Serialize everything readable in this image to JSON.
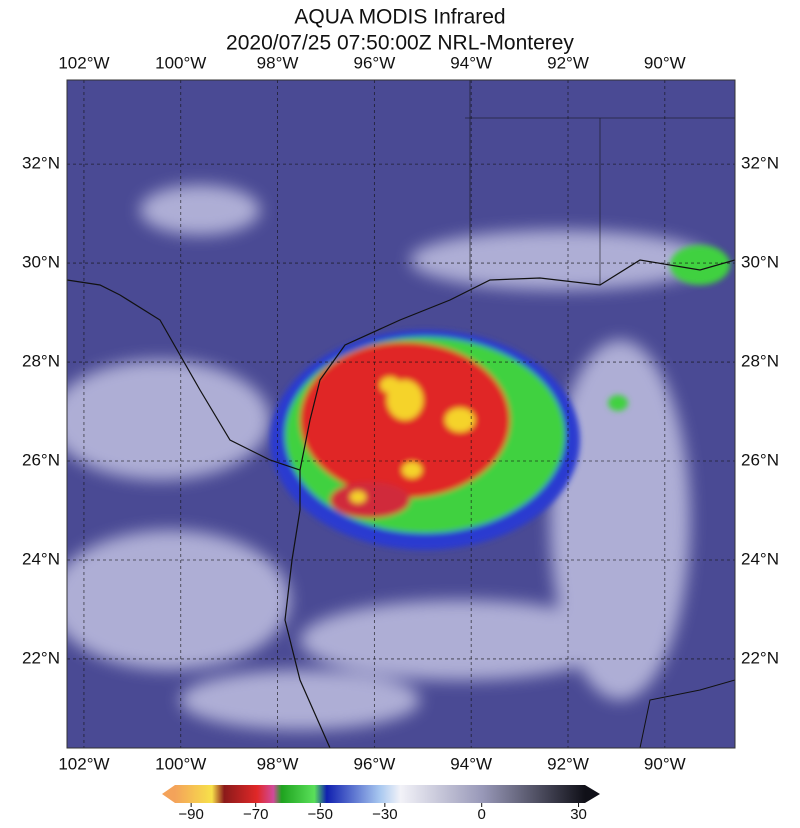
{
  "header": {
    "title": "AQUA MODIS Infrared",
    "subtitle": "2020/07/25 07:50:00Z NRL-Monterey"
  },
  "map": {
    "xlim": [
      -102.35,
      -88.55
    ],
    "ylim": [
      20.2,
      33.7
    ],
    "lon_ticks": [
      {
        "value": -102,
        "label": "102°W"
      },
      {
        "value": -100,
        "label": "100°W"
      },
      {
        "value": -98,
        "label": "98°W"
      },
      {
        "value": -96,
        "label": "96°W"
      },
      {
        "value": -94,
        "label": "94°W"
      },
      {
        "value": -92,
        "label": "92°W"
      },
      {
        "value": -90,
        "label": "90°W"
      }
    ],
    "lat_ticks": [
      {
        "value": 22,
        "label": "22°N"
      },
      {
        "value": 24,
        "label": "24°N"
      },
      {
        "value": 26,
        "label": "26°N"
      },
      {
        "value": 28,
        "label": "28°N"
      },
      {
        "value": 30,
        "label": "30°N"
      },
      {
        "value": 32,
        "label": "32°N"
      }
    ]
  },
  "colorbar": {
    "lim": [
      -95,
      32
    ],
    "ticks": [
      {
        "value": -90,
        "label": "−90"
      },
      {
        "value": -70,
        "label": "−70"
      },
      {
        "value": -50,
        "label": "−50"
      },
      {
        "value": -30,
        "label": "−30"
      },
      0,
      30
    ]
  }
}
